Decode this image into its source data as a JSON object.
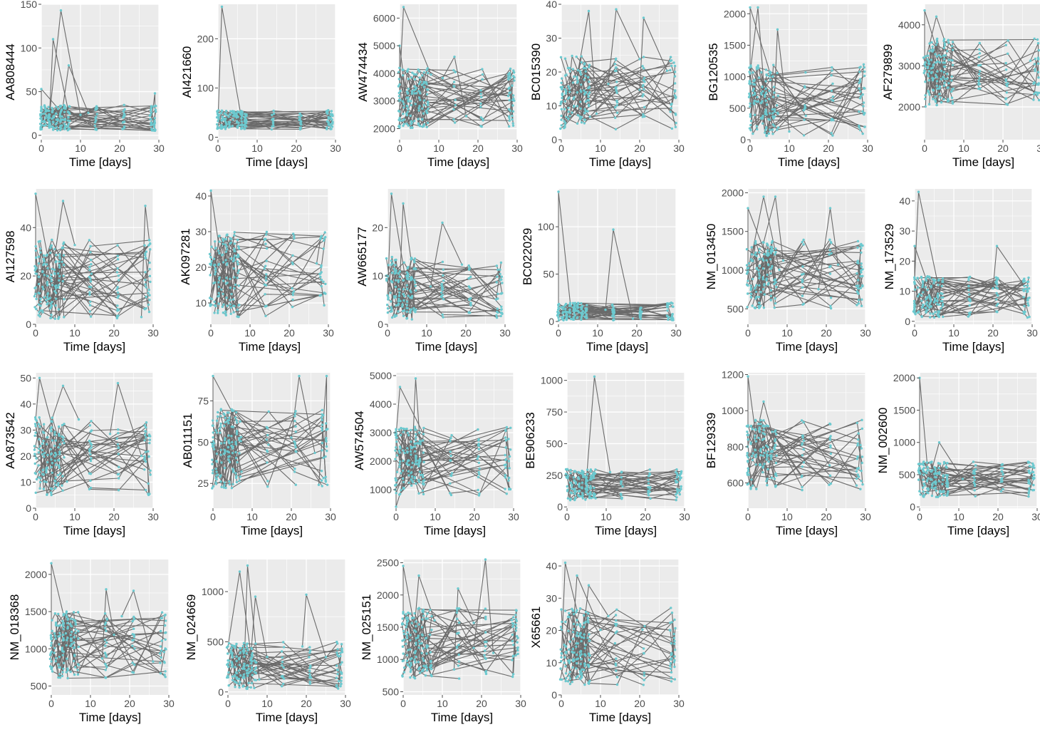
{
  "figure": {
    "x_axis_title": "Time [days]"
  },
  "colors": {
    "panel_bg": "#ebebeb",
    "grid_major": "#ffffff",
    "line": "#6b6b6b",
    "point": "#6cc9cf",
    "text": "#000000",
    "tick": "#4d4d4d"
  },
  "chart_data": [
    {
      "type": "line",
      "gene": "AA808444",
      "ylabel": "AA808444",
      "xlabel": "Time [days]",
      "xlim": [
        0,
        30
      ],
      "ylim": [
        -5,
        150
      ],
      "x_ticks": [
        0,
        10,
        20,
        30
      ],
      "y_ticks": [
        0,
        50,
        100,
        150
      ],
      "typical_range": [
        5,
        35
      ],
      "spikes": [
        [
          0,
          53
        ],
        [
          3,
          110
        ],
        [
          5,
          143
        ],
        [
          7,
          80
        ],
        [
          29,
          48
        ]
      ]
    },
    {
      "type": "line",
      "gene": "AI421660",
      "ylabel": "AI421660",
      "xlabel": "Time [days]",
      "xlim": [
        0,
        30
      ],
      "ylim": [
        -5,
        270
      ],
      "x_ticks": [
        0,
        10,
        20,
        30
      ],
      "y_ticks": [
        0,
        100,
        200
      ],
      "typical_range": [
        15,
        55
      ],
      "spikes": [
        [
          1,
          265
        ]
      ]
    },
    {
      "type": "line",
      "gene": "AW474434",
      "ylabel": "AW474434",
      "xlabel": "Time [days]",
      "xlim": [
        0,
        30
      ],
      "ylim": [
        1600,
        6500
      ],
      "x_ticks": [
        0,
        10,
        20,
        30
      ],
      "y_ticks": [
        2000,
        3000,
        4000,
        5000,
        6000
      ],
      "typical_range": [
        2000,
        4200
      ],
      "spikes": [
        [
          1,
          6400
        ],
        [
          0,
          5000
        ],
        [
          14,
          4600
        ]
      ]
    },
    {
      "type": "line",
      "gene": "BC015390",
      "ylabel": "BC015390",
      "xlabel": "Time [days]",
      "xlim": [
        0,
        30
      ],
      "ylim": [
        0,
        40
      ],
      "x_ticks": [
        0,
        10,
        20,
        30
      ],
      "y_ticks": [
        0,
        10,
        20,
        30,
        40
      ],
      "typical_range": [
        3,
        25
      ],
      "spikes": [
        [
          7,
          38
        ],
        [
          14,
          38.5
        ],
        [
          21,
          36
        ]
      ]
    },
    {
      "type": "line",
      "gene": "BG120535",
      "ylabel": "BG120535",
      "xlabel": "Time [days]",
      "xlim": [
        0,
        30
      ],
      "ylim": [
        0,
        2150
      ],
      "x_ticks": [
        0,
        10,
        20,
        30
      ],
      "y_ticks": [
        0,
        500,
        1000,
        1500,
        2000
      ],
      "typical_range": [
        50,
        1200
      ],
      "spikes": [
        [
          0,
          2100
        ],
        [
          2,
          2100
        ],
        [
          7,
          1750
        ]
      ]
    },
    {
      "type": "line",
      "gene": "AF279899",
      "ylabel": "AF279899",
      "xlabel": "Time [days]",
      "xlim": [
        0,
        30
      ],
      "ylim": [
        1200,
        4500
      ],
      "x_ticks": [
        0,
        10,
        20,
        30
      ],
      "y_ticks": [
        2000,
        3000,
        4000
      ],
      "typical_range": [
        2000,
        3700
      ],
      "spikes": [
        [
          0,
          4350
        ],
        [
          3,
          4200
        ],
        [
          29,
          3550
        ]
      ]
    },
    {
      "type": "line",
      "gene": "AI127598",
      "ylabel": "AI127598",
      "xlabel": "Time [days]",
      "xlim": [
        0,
        30
      ],
      "ylim": [
        0,
        56
      ],
      "x_ticks": [
        0,
        10,
        20,
        30
      ],
      "y_ticks": [
        0,
        20,
        40
      ],
      "typical_range": [
        2,
        35
      ],
      "spikes": [
        [
          0,
          54
        ],
        [
          7,
          51
        ],
        [
          28,
          49
        ]
      ]
    },
    {
      "type": "line",
      "gene": "AK097281",
      "ylabel": "AK097281",
      "xlabel": "Time [days]",
      "xlim": [
        0,
        30
      ],
      "ylim": [
        4,
        42
      ],
      "x_ticks": [
        0,
        10,
        20,
        30
      ],
      "y_ticks": [
        10,
        20,
        30,
        40
      ],
      "typical_range": [
        6,
        30
      ],
      "spikes": [
        [
          0,
          41.5
        ],
        [
          28,
          28
        ]
      ]
    },
    {
      "type": "line",
      "gene": "AW665177",
      "ylabel": "AW665177",
      "xlabel": "Time [days]",
      "xlim": [
        0,
        30
      ],
      "ylim": [
        0,
        28
      ],
      "x_ticks": [
        0,
        10,
        20,
        30
      ],
      "y_ticks": [
        0,
        10,
        20
      ],
      "typical_range": [
        1,
        14
      ],
      "spikes": [
        [
          1,
          27
        ],
        [
          4,
          25
        ],
        [
          14,
          21
        ]
      ]
    },
    {
      "type": "line",
      "gene": "BC022029",
      "ylabel": "BC022029",
      "xlabel": "Time [days]",
      "xlim": [
        0,
        30
      ],
      "ylim": [
        -3,
        140
      ],
      "x_ticks": [
        0,
        10,
        20,
        30
      ],
      "y_ticks": [
        0,
        50,
        100
      ],
      "typical_range": [
        1,
        20
      ],
      "spikes": [
        [
          0,
          137
        ],
        [
          14,
          97
        ]
      ]
    },
    {
      "type": "line",
      "gene": "NM_013450",
      "ylabel": "NM_013450",
      "xlabel": "Time [days]",
      "xlim": [
        0,
        30
      ],
      "ylim": [
        300,
        2050
      ],
      "x_ticks": [
        0,
        10,
        20,
        30
      ],
      "y_ticks": [
        500,
        1000,
        1500,
        2000
      ],
      "typical_range": [
        500,
        1400
      ],
      "spikes": [
        [
          0,
          1800
        ],
        [
          4,
          1950
        ],
        [
          7,
          1950
        ],
        [
          21,
          1800
        ]
      ]
    },
    {
      "type": "line",
      "gene": "NM_173529",
      "ylabel": "NM_173529",
      "xlabel": "Time [days]",
      "xlim": [
        0,
        30
      ],
      "ylim": [
        -1,
        44
      ],
      "x_ticks": [
        0,
        10,
        20,
        30
      ],
      "y_ticks": [
        0,
        10,
        20,
        30,
        40
      ],
      "typical_range": [
        1,
        15
      ],
      "spikes": [
        [
          1,
          43
        ],
        [
          0,
          25
        ],
        [
          21,
          25
        ]
      ]
    },
    {
      "type": "line",
      "gene": "AA873542",
      "ylabel": "AA873542",
      "xlabel": "Time [days]",
      "xlim": [
        0,
        30
      ],
      "ylim": [
        0,
        52
      ],
      "x_ticks": [
        0,
        10,
        20,
        30
      ],
      "y_ticks": [
        0,
        10,
        20,
        30,
        40,
        50
      ],
      "typical_range": [
        5,
        35
      ],
      "spikes": [
        [
          1,
          50
        ],
        [
          7,
          47
        ],
        [
          21,
          48
        ]
      ]
    },
    {
      "type": "line",
      "gene": "AB011151",
      "ylabel": "AB011151",
      "xlabel": "Time [days]",
      "xlim": [
        0,
        30
      ],
      "ylim": [
        10,
        92
      ],
      "x_ticks": [
        0,
        10,
        20,
        30
      ],
      "y_ticks": [
        25,
        50,
        75
      ],
      "typical_range": [
        22,
        70
      ],
      "spikes": [
        [
          0,
          90
        ],
        [
          22,
          90
        ],
        [
          29,
          90
        ]
      ]
    },
    {
      "type": "line",
      "gene": "AW574504",
      "ylabel": "AW574504",
      "xlabel": "Time [days]",
      "xlim": [
        0,
        30
      ],
      "ylim": [
        350,
        5100
      ],
      "x_ticks": [
        0,
        10,
        20,
        30
      ],
      "y_ticks": [
        1000,
        2000,
        3000,
        4000,
        5000
      ],
      "typical_range": [
        800,
        3200
      ],
      "spikes": [
        [
          1,
          4600
        ],
        [
          5,
          4900
        ],
        [
          0,
          400
        ]
      ]
    },
    {
      "type": "line",
      "gene": "BE906233",
      "ylabel": "BE906233",
      "xlabel": "Time [days]",
      "xlim": [
        0,
        30
      ],
      "ylim": [
        -10,
        1060
      ],
      "x_ticks": [
        0,
        10,
        20,
        30
      ],
      "y_ticks": [
        0,
        250,
        500,
        750,
        1000
      ],
      "typical_range": [
        50,
        300
      ],
      "spikes": [
        [
          7,
          1030
        ]
      ]
    },
    {
      "type": "line",
      "gene": "BF129339",
      "ylabel": "BF129339",
      "xlabel": "Time [days]",
      "xlim": [
        0,
        30
      ],
      "ylim": [
        460,
        1210
      ],
      "x_ticks": [
        0,
        10,
        20,
        30
      ],
      "y_ticks": [
        600,
        800,
        1000,
        1200
      ],
      "typical_range": [
        560,
        950
      ],
      "spikes": [
        [
          0,
          1190
        ],
        [
          4,
          1050
        ]
      ]
    },
    {
      "type": "line",
      "gene": "NM_002600",
      "ylabel": "NM_002600",
      "xlabel": "Time [days]",
      "xlim": [
        0,
        30
      ],
      "ylim": [
        -20,
        2080
      ],
      "x_ticks": [
        0,
        10,
        20,
        30
      ],
      "y_ticks": [
        0,
        500,
        1000,
        1500,
        2000
      ],
      "typical_range": [
        150,
        700
      ],
      "spikes": [
        [
          0,
          2000
        ],
        [
          5,
          1000
        ]
      ]
    },
    {
      "type": "line",
      "gene": "NM_018368",
      "ylabel": "NM_018368",
      "xlabel": "Time [days]",
      "xlim": [
        0,
        30
      ],
      "ylim": [
        380,
        2200
      ],
      "x_ticks": [
        0,
        10,
        20,
        30
      ],
      "y_ticks": [
        500,
        1000,
        1500,
        2000
      ],
      "typical_range": [
        600,
        1500
      ],
      "spikes": [
        [
          0,
          2150
        ],
        [
          14,
          1800
        ],
        [
          21,
          1780
        ]
      ]
    },
    {
      "type": "line",
      "gene": "NM_024669",
      "ylabel": "NM_024669",
      "xlabel": "Time [days]",
      "xlim": [
        0,
        30
      ],
      "ylim": [
        -30,
        1320
      ],
      "x_ticks": [
        0,
        10,
        20,
        30
      ],
      "y_ticks": [
        0,
        500,
        1000
      ],
      "typical_range": [
        20,
        500
      ],
      "spikes": [
        [
          3,
          1200
        ],
        [
          5,
          1260
        ],
        [
          7,
          950
        ],
        [
          20,
          970
        ]
      ]
    },
    {
      "type": "line",
      "gene": "NM_025151",
      "ylabel": "NM_025151",
      "xlabel": "Time [days]",
      "xlim": [
        0,
        30
      ],
      "ylim": [
        450,
        2550
      ],
      "x_ticks": [
        0,
        10,
        20,
        30
      ],
      "y_ticks": [
        500,
        1000,
        1500,
        2000,
        2500
      ],
      "typical_range": [
        700,
        1800
      ],
      "spikes": [
        [
          0,
          2450
        ],
        [
          4,
          2300
        ],
        [
          21,
          2550
        ],
        [
          14,
          2100
        ]
      ]
    },
    {
      "type": "line",
      "gene": "X65661",
      "ylabel": "X65661",
      "xlabel": "Time [days]",
      "xlim": [
        0,
        30
      ],
      "ylim": [
        0,
        42
      ],
      "x_ticks": [
        0,
        10,
        20,
        30
      ],
      "y_ticks": [
        0,
        10,
        20,
        30,
        40
      ],
      "typical_range": [
        3,
        27
      ],
      "spikes": [
        [
          1,
          41
        ],
        [
          4,
          37
        ],
        [
          7,
          34
        ]
      ]
    }
  ]
}
